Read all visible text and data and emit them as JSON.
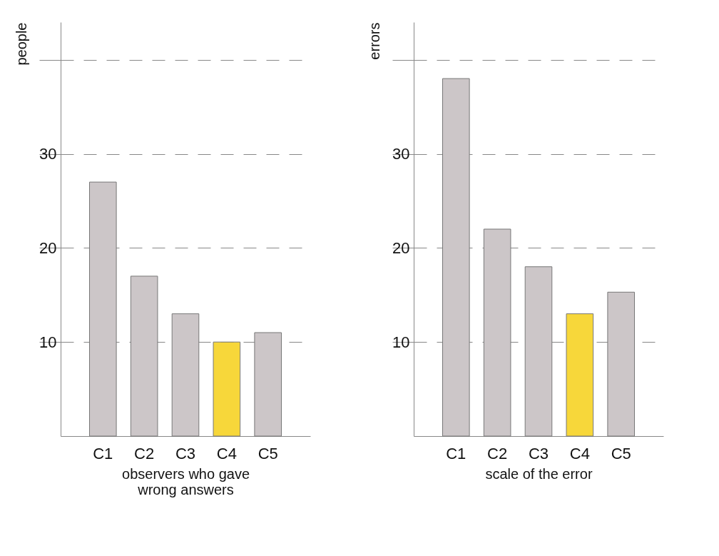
{
  "chart_data": [
    {
      "type": "bar",
      "ylabel": "people",
      "xlabel": "observers who gave wrong answers",
      "categories": [
        "C1",
        "C2",
        "C3",
        "C4",
        "C5"
      ],
      "values": [
        27,
        17,
        13,
        10,
        11
      ],
      "colors": [
        "#ccc6c8",
        "#ccc6c8",
        "#ccc6c8",
        "#f7d73a",
        "#ccc6c8"
      ],
      "ylim": [
        0,
        44
      ],
      "yticks": [
        10,
        20,
        30,
        {
          "value": 40,
          "label": null
        }
      ],
      "grid": "y"
    },
    {
      "type": "bar",
      "ylabel": "errors",
      "xlabel": "scale of the error",
      "categories": [
        "C1",
        "C2",
        "C3",
        "C4",
        "C5"
      ],
      "values": [
        38,
        22,
        18,
        13,
        15.3
      ],
      "colors": [
        "#ccc6c8",
        "#ccc6c8",
        "#ccc6c8",
        "#f7d73a",
        "#ccc6c8"
      ],
      "ylim": [
        0,
        44
      ],
      "yticks": [
        10,
        20,
        30,
        {
          "value": 40,
          "label": null
        }
      ],
      "grid": "y"
    }
  ]
}
